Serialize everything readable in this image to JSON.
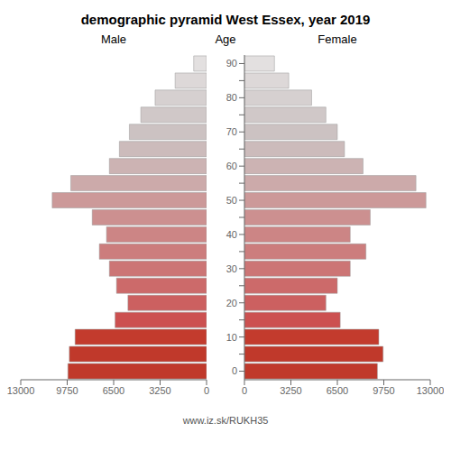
{
  "chart_data": {
    "type": "bar",
    "title": "demographic pyramid West Essex, year 2019",
    "orientation": "horizontal",
    "ylabel": "Age",
    "annotations": [
      "www.iz.sk/RUKH35"
    ],
    "categories": [
      "0",
      null,
      "10",
      null,
      "20",
      null,
      "30",
      null,
      "40",
      null,
      "50",
      null,
      "60",
      null,
      "70",
      null,
      "80",
      null,
      "90"
    ],
    "series": [
      {
        "name": "Male",
        "values": [
          9700,
          9600,
          9200,
          6400,
          5500,
          6300,
          6800,
          7500,
          7000,
          8000,
          10800,
          9500,
          6800,
          6100,
          5400,
          4600,
          3600,
          2200,
          900
        ]
      },
      {
        "name": "Female",
        "values": [
          9300,
          9700,
          9400,
          6700,
          5700,
          6500,
          7400,
          8500,
          7400,
          8800,
          12700,
          12000,
          8300,
          7000,
          6500,
          5700,
          4700,
          3100,
          2100
        ]
      }
    ],
    "colors": [
      "#c0392b",
      "#c0392b",
      "#c33b2d",
      "#cc5050",
      "#cc6060",
      "#cc6a6a",
      "#cc7575",
      "#cc7d7d",
      "#cc8585",
      "#cc9090",
      "#cc9999",
      "#ccaaaa",
      "#ccb3b3",
      "#ccbbbb",
      "#ccc2c2",
      "#d0c8c8",
      "#d6d0d0",
      "#ddd8d8",
      "#e3e0e0"
    ],
    "xlim": [
      0,
      13000
    ],
    "xticks": [
      0,
      3250,
      6500,
      9750,
      13000
    ],
    "grid": false
  }
}
